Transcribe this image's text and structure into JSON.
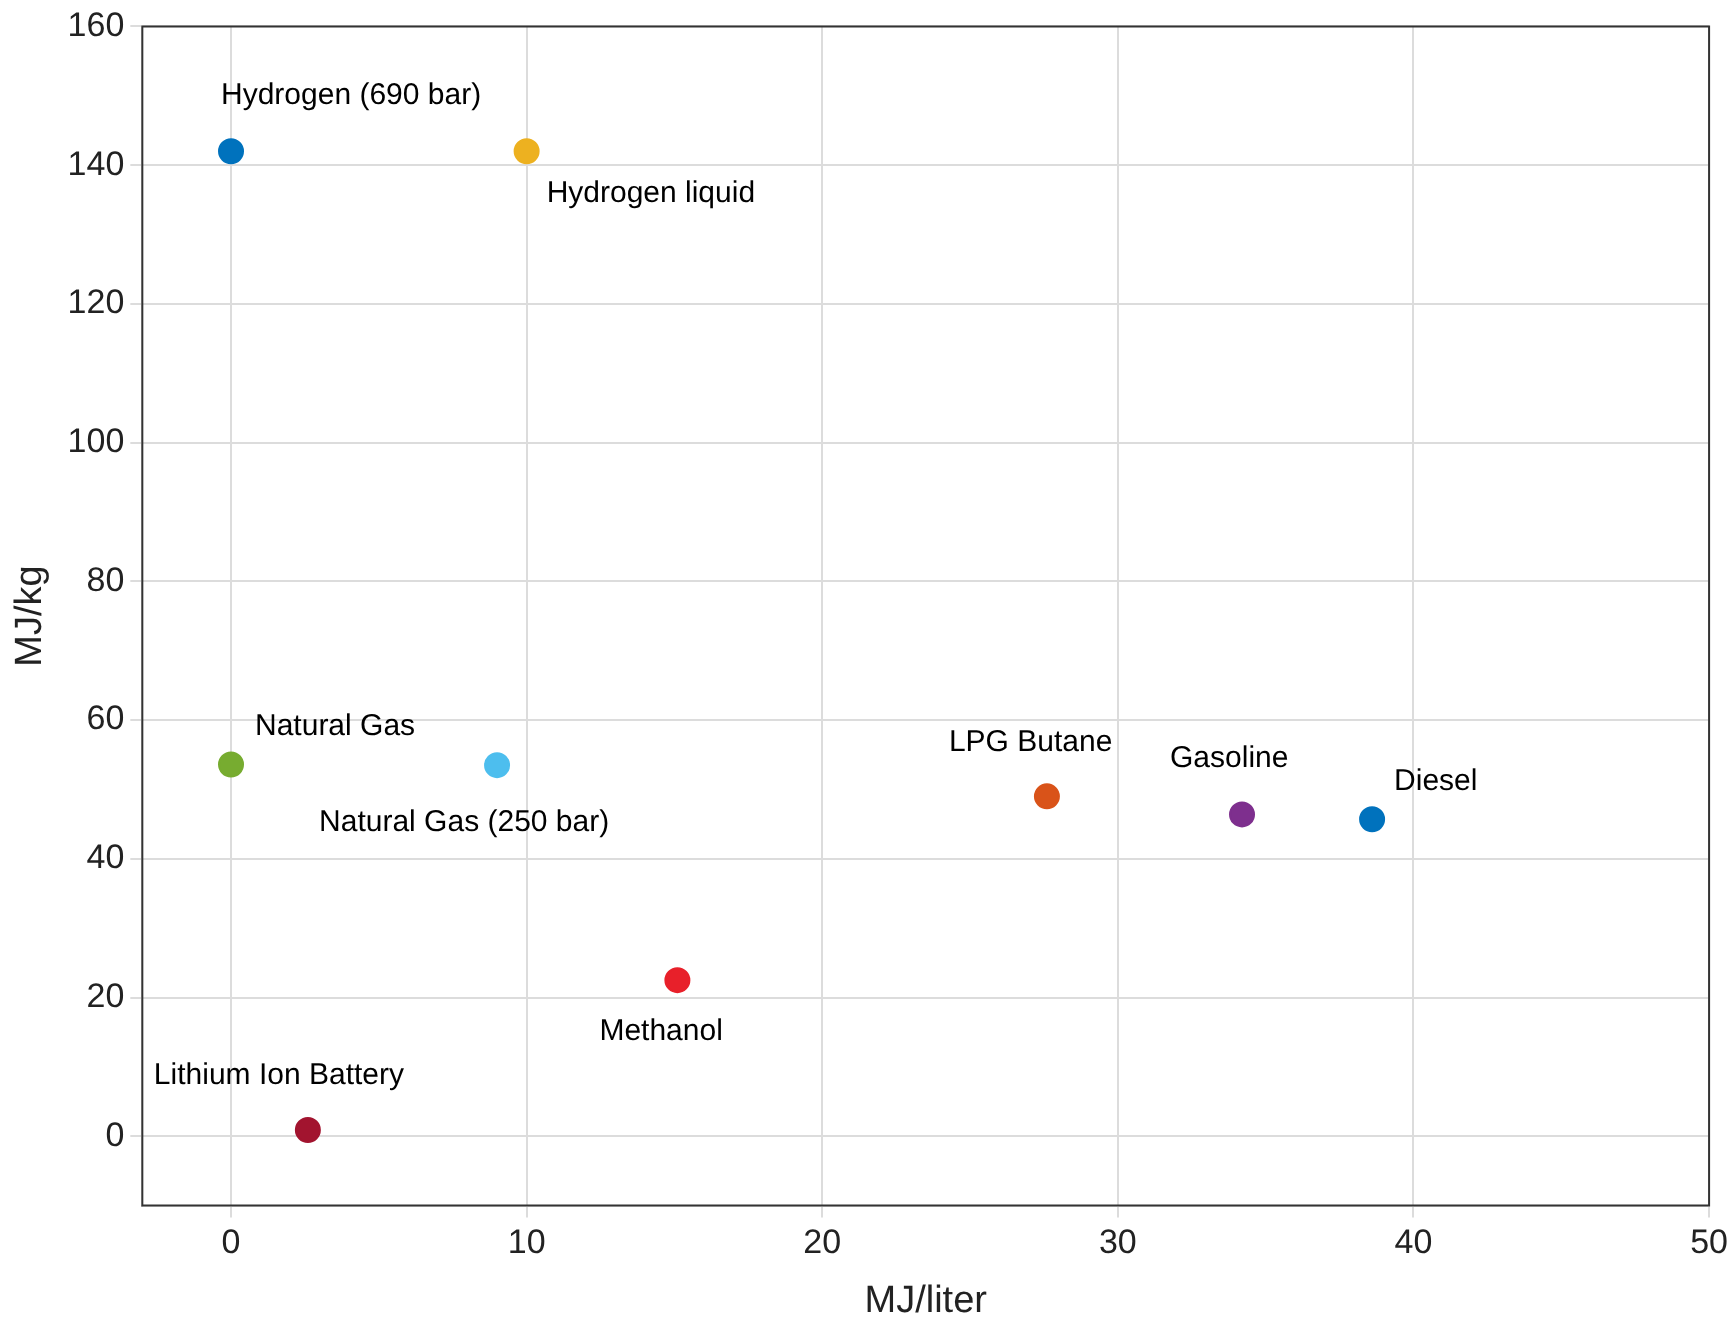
{
  "chart_data": {
    "type": "scatter",
    "xlabel": "MJ/liter",
    "ylabel": "MJ/kg",
    "x": [
      0,
      10,
      0,
      9,
      15.1,
      2.6,
      27.6,
      34.2,
      38.6
    ],
    "values": [
      142,
      142,
      53.6,
      53.5,
      22.5,
      0.9,
      49,
      46.4,
      45.7
    ],
    "colors": [
      "#0072bd",
      "#edb120",
      "#77ac30",
      "#4dbeee",
      "#e8202a",
      "#a2142f",
      "#d95319",
      "#7e2f8e",
      "#0072bd"
    ],
    "annotations": [
      {
        "text": "Hydrogen (690 bar)",
        "x": 0,
        "y": 142
      },
      {
        "text": "Hydrogen liquid",
        "x": 10,
        "y": 142
      },
      {
        "text": "Natural Gas",
        "x": 0,
        "y": 53.6
      },
      {
        "text": "Natural Gas (250 bar)",
        "x": 9,
        "y": 53.5
      },
      {
        "text": "Methanol",
        "x": 15.1,
        "y": 22.5
      },
      {
        "text": "Lithium Ion Battery",
        "x": 2.6,
        "y": 0.9
      },
      {
        "text": "LPG Butane",
        "x": 27.6,
        "y": 49
      },
      {
        "text": "Gasoline",
        "x": 34.2,
        "y": 46.4
      },
      {
        "text": "Diesel",
        "x": 38.6,
        "y": 45.7
      }
    ],
    "xlim": [
      -3,
      50
    ],
    "xticks": [
      0,
      10,
      20,
      30,
      40,
      50
    ],
    "ylim": [
      -10,
      160
    ],
    "yticks": [
      0,
      20,
      40,
      60,
      80,
      100,
      120,
      140,
      160
    ],
    "grid": true,
    "marker": "circle"
  }
}
